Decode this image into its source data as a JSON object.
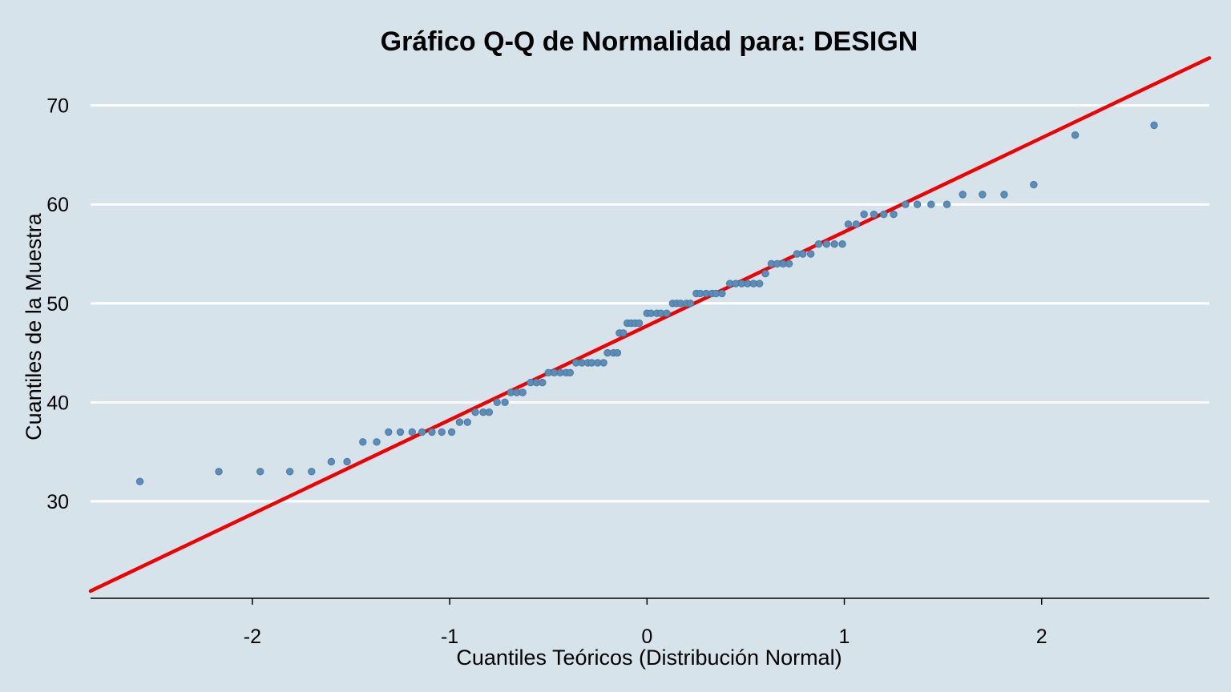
{
  "chart_data": {
    "type": "scatter",
    "title": "Gráfico Q-Q de Normalidad para: DESIGN",
    "xlabel": "Cuantiles Teóricos (Distribución Normal)",
    "ylabel": "Cuantiles de la Muestra",
    "xlim": [
      -2.82,
      2.85
    ],
    "ylim": [
      20.2,
      75.8
    ],
    "x_ticks": [
      -2,
      -1,
      0,
      1,
      2
    ],
    "y_ticks": [
      30,
      40,
      50,
      60,
      70
    ],
    "grid": "horizontal",
    "point_color": "#5b8db8",
    "line_color": "#ee0000",
    "reference_line": {
      "intercept": 47.3,
      "slope": 9.35
    },
    "points": [
      [
        -2.57,
        32
      ],
      [
        -2.17,
        33
      ],
      [
        -1.96,
        33
      ],
      [
        -1.81,
        33
      ],
      [
        -1.7,
        33
      ],
      [
        -1.6,
        34
      ],
      [
        -1.52,
        34
      ],
      [
        -1.44,
        36
      ],
      [
        -1.37,
        36
      ],
      [
        -1.31,
        37
      ],
      [
        -1.25,
        37
      ],
      [
        -1.19,
        37
      ],
      [
        -1.14,
        37
      ],
      [
        -1.09,
        37
      ],
      [
        -1.04,
        37
      ],
      [
        -0.99,
        37
      ],
      [
        -0.95,
        38
      ],
      [
        -0.91,
        38
      ],
      [
        -0.87,
        39
      ],
      [
        -0.83,
        39
      ],
      [
        -0.8,
        39
      ],
      [
        -0.76,
        40
      ],
      [
        -0.72,
        40
      ],
      [
        -0.69,
        41
      ],
      [
        -0.66,
        41
      ],
      [
        -0.63,
        41
      ],
      [
        -0.59,
        42
      ],
      [
        -0.56,
        42
      ],
      [
        -0.53,
        42
      ],
      [
        -0.5,
        43
      ],
      [
        -0.47,
        43
      ],
      [
        -0.44,
        43
      ],
      [
        -0.41,
        43
      ],
      [
        -0.39,
        43
      ],
      [
        -0.36,
        44
      ],
      [
        -0.33,
        44
      ],
      [
        -0.3,
        44
      ],
      [
        -0.28,
        44
      ],
      [
        -0.25,
        44
      ],
      [
        -0.22,
        44
      ],
      [
        -0.2,
        45
      ],
      [
        -0.17,
        45
      ],
      [
        -0.15,
        45
      ],
      [
        -0.14,
        47
      ],
      [
        -0.12,
        47
      ],
      [
        -0.1,
        48
      ],
      [
        -0.08,
        48
      ],
      [
        -0.06,
        48
      ],
      [
        -0.04,
        48
      ],
      [
        0.0,
        49
      ],
      [
        0.02,
        49
      ],
      [
        0.05,
        49
      ],
      [
        0.07,
        49
      ],
      [
        0.1,
        49
      ],
      [
        0.13,
        50
      ],
      [
        0.15,
        50
      ],
      [
        0.17,
        50
      ],
      [
        0.2,
        50
      ],
      [
        0.22,
        50
      ],
      [
        0.25,
        51
      ],
      [
        0.27,
        51
      ],
      [
        0.3,
        51
      ],
      [
        0.33,
        51
      ],
      [
        0.35,
        51
      ],
      [
        0.38,
        51
      ],
      [
        0.42,
        52
      ],
      [
        0.45,
        52
      ],
      [
        0.48,
        52
      ],
      [
        0.51,
        52
      ],
      [
        0.54,
        52
      ],
      [
        0.57,
        52
      ],
      [
        0.6,
        53
      ],
      [
        0.63,
        54
      ],
      [
        0.66,
        54
      ],
      [
        0.69,
        54
      ],
      [
        0.72,
        54
      ],
      [
        0.76,
        55
      ],
      [
        0.79,
        55
      ],
      [
        0.83,
        55
      ],
      [
        0.87,
        56
      ],
      [
        0.91,
        56
      ],
      [
        0.95,
        56
      ],
      [
        0.99,
        56
      ],
      [
        1.02,
        58
      ],
      [
        1.06,
        58
      ],
      [
        1.1,
        59
      ],
      [
        1.15,
        59
      ],
      [
        1.2,
        59
      ],
      [
        1.25,
        59
      ],
      [
        1.31,
        60
      ],
      [
        1.37,
        60
      ],
      [
        1.44,
        60
      ],
      [
        1.52,
        60
      ],
      [
        1.6,
        61
      ],
      [
        1.7,
        61
      ],
      [
        1.81,
        61
      ],
      [
        1.96,
        62
      ],
      [
        2.17,
        67
      ],
      [
        2.57,
        68
      ]
    ]
  }
}
